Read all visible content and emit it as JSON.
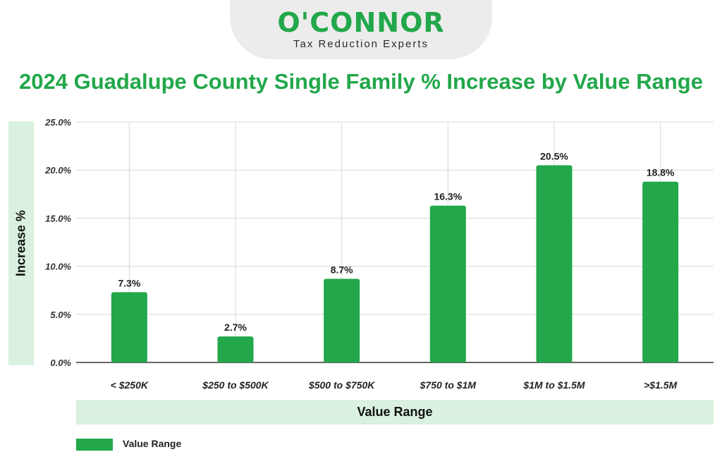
{
  "logo": {
    "name": "O'CONNOR",
    "tagline": "Tax Reduction Experts"
  },
  "colors": {
    "accent": "#22a74a",
    "band": "#d9f1de"
  },
  "chart_data": {
    "type": "bar",
    "title": "2024 Guadalupe County Single Family % Increase by Value Range",
    "xlabel": "Value Range",
    "ylabel": "Increase %",
    "categories": [
      "< $250K",
      "$250 to $500K",
      "$500 to $750K",
      "$750 to $1M",
      "$1M to $1.5M",
      ">$1.5M"
    ],
    "series": [
      {
        "name": "Value Range",
        "values": [
          7.3,
          2.7,
          8.7,
          16.3,
          20.5,
          18.8
        ],
        "labels": [
          "7.3%",
          "2.7%",
          "8.7%",
          "16.3%",
          "20.5%",
          "18.8%"
        ]
      }
    ],
    "ylim": [
      0,
      25
    ],
    "yticks": [
      "0.0%",
      "5.0%",
      "10.0%",
      "15.0%",
      "20.0%",
      "25.0%"
    ],
    "grid": true,
    "legend": "bottom-left"
  }
}
